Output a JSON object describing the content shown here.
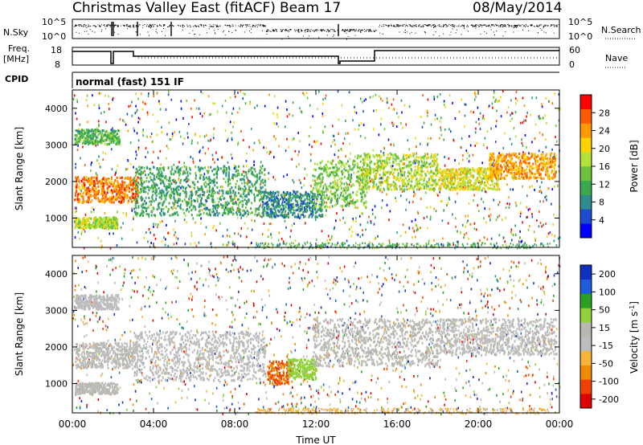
{
  "header": {
    "station": "Christmas Valley East (fitACF)",
    "beam": "Beam 17",
    "date": "08/May/2014"
  },
  "top_panels": {
    "nsky_label": "N.Sky",
    "nsky_ticks": [
      "10^5",
      "10^0"
    ],
    "nsearch_label": "N.Search",
    "nsearch_ticks": [
      "10^5",
      "10^0"
    ],
    "freq_label": "Freq.",
    "freq_unit": "[MHz]",
    "freq_ticks": [
      "18",
      "8"
    ],
    "nave_label": "Nave",
    "nave_ticks": [
      "60",
      "0"
    ],
    "cpid_label": "CPID",
    "cpid_text": "normal (fast) 151 IF"
  },
  "xaxis": {
    "label": "Time UT",
    "ticks": [
      "00:00",
      "04:00",
      "08:00",
      "12:00",
      "16:00",
      "20:00",
      "00:00"
    ]
  },
  "colors": {
    "power": [
      "#0000ff",
      "#1a4ccd",
      "#2f8c8c",
      "#3aa84f",
      "#6cc43c",
      "#b4e23c",
      "#ffd200",
      "#ff9a00",
      "#ff5a00",
      "#ff0000"
    ],
    "velocity": [
      "#1030c0",
      "#1d5ed8",
      "#2aa024",
      "#8fd23c",
      "#b8b8b0",
      "#bebdbd",
      "#f6b43a",
      "#f08a00",
      "#f04000",
      "#e00000"
    ]
  },
  "chart_data": [
    {
      "type": "heatmap",
      "panel": "power",
      "ylabel": "Slant Range [km]",
      "yticks": [
        "1000",
        "2000",
        "3000",
        "4000"
      ],
      "ylim": [
        200,
        4500
      ],
      "xlim": [
        0,
        24
      ],
      "colorbar_label": "Power [dB]",
      "colorbar_ticks": [
        "4",
        "8",
        "12",
        "16",
        "20",
        "24",
        "28"
      ],
      "colorbar_range": [
        0,
        30
      ],
      "bands": [
        {
          "t0": 0.1,
          "t1": 3.2,
          "r0": 1450,
          "r1": 2150,
          "level": 24
        },
        {
          "t0": 0.1,
          "t1": 2.2,
          "r0": 750,
          "r1": 1050,
          "level": 16
        },
        {
          "t0": 0.1,
          "t1": 2.3,
          "r0": 3050,
          "r1": 3450,
          "level": 12
        },
        {
          "t0": 3.0,
          "t1": 9.5,
          "r0": 1100,
          "r1": 2450,
          "level": 10
        },
        {
          "t0": 9.3,
          "t1": 12.3,
          "r0": 1050,
          "r1": 1750,
          "level": 8
        },
        {
          "t0": 11.8,
          "t1": 14.5,
          "r0": 1300,
          "r1": 2600,
          "level": 14
        },
        {
          "t0": 14.0,
          "t1": 18.0,
          "r0": 1800,
          "r1": 2800,
          "level": 16
        },
        {
          "t0": 18.0,
          "t1": 21.0,
          "r0": 1800,
          "r1": 2400,
          "level": 18
        },
        {
          "t0": 20.5,
          "t1": 23.8,
          "r0": 2100,
          "r1": 2800,
          "level": 22
        }
      ]
    },
    {
      "type": "heatmap",
      "panel": "velocity",
      "ylabel": "Slant Range [km]",
      "yticks": [
        "1000",
        "2000",
        "3000",
        "4000"
      ],
      "ylim": [
        200,
        4500
      ],
      "xlim": [
        0,
        24
      ],
      "colorbar_label": "Velocity [m s^-1]",
      "colorbar_ticks": [
        "200",
        "100",
        "50",
        "15",
        "-15",
        "-50",
        "-100",
        "-200"
      ],
      "colorbar_range": [
        -250,
        250
      ],
      "bands": [
        {
          "t0": 0.1,
          "t1": 3.2,
          "r0": 1450,
          "r1": 2150,
          "level": 0
        },
        {
          "t0": 0.1,
          "t1": 2.2,
          "r0": 750,
          "r1": 1050,
          "level": 0
        },
        {
          "t0": 0.1,
          "t1": 2.3,
          "r0": 3050,
          "r1": 3450,
          "level": -10
        },
        {
          "t0": 3.0,
          "t1": 9.5,
          "r0": 1100,
          "r1": 2450,
          "level": -20
        },
        {
          "t0": 9.6,
          "t1": 10.8,
          "r0": 1000,
          "r1": 1650,
          "level": -150
        },
        {
          "t0": 10.6,
          "t1": 12.0,
          "r0": 1150,
          "r1": 1700,
          "level": 80
        },
        {
          "t0": 11.8,
          "t1": 18.0,
          "r0": 1500,
          "r1": 2800,
          "level": 5
        },
        {
          "t0": 18.0,
          "t1": 23.8,
          "r0": 1800,
          "r1": 2800,
          "level": -5
        }
      ]
    }
  ]
}
